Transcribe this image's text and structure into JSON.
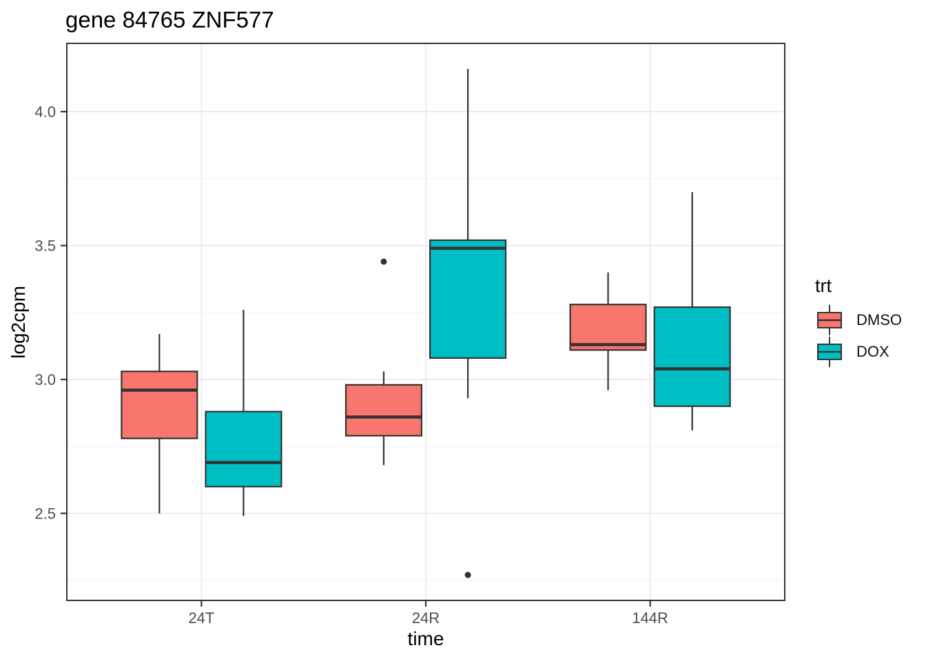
{
  "title": "gene 84765 ZNF577",
  "axes": {
    "x": {
      "label": "time",
      "tick_labels": [
        "24T",
        "24R",
        "144R"
      ]
    },
    "y": {
      "label": "log2cpm",
      "tick_labels": [
        "2.5",
        "3.0",
        "3.5",
        "4.0"
      ]
    }
  },
  "legend": {
    "title": "trt",
    "items": [
      {
        "label": "DMSO",
        "color": "#F8766D"
      },
      {
        "label": "DOX",
        "color": "#00BFC4"
      }
    ]
  },
  "chart_data": {
    "type": "boxplot",
    "title": "gene 84765 ZNF577",
    "xlabel": "time",
    "ylabel": "log2cpm",
    "categories": [
      "24T",
      "24R",
      "144R"
    ],
    "series": [
      {
        "name": "DMSO",
        "color": "#F8766D",
        "boxes": [
          {
            "category": "24T",
            "whisker_low": 2.5,
            "q1": 2.78,
            "median": 2.96,
            "q3": 3.03,
            "whisker_high": 3.17,
            "outliers": []
          },
          {
            "category": "24R",
            "whisker_low": 2.68,
            "q1": 2.79,
            "median": 2.86,
            "q3": 2.98,
            "whisker_high": 3.03,
            "outliers": [
              3.44
            ]
          },
          {
            "category": "144R",
            "whisker_low": 2.96,
            "q1": 3.11,
            "median": 3.13,
            "q3": 3.28,
            "whisker_high": 3.4,
            "outliers": []
          }
        ]
      },
      {
        "name": "DOX",
        "color": "#00BFC4",
        "boxes": [
          {
            "category": "24T",
            "whisker_low": 2.49,
            "q1": 2.6,
            "median": 2.69,
            "q3": 2.88,
            "whisker_high": 3.26,
            "outliers": []
          },
          {
            "category": "24R",
            "whisker_low": 2.93,
            "q1": 3.08,
            "median": 3.49,
            "q3": 3.52,
            "whisker_high": 4.16,
            "outliers": [
              2.27
            ]
          },
          {
            "category": "144R",
            "whisker_low": 2.81,
            "q1": 2.9,
            "median": 3.04,
            "q3": 3.27,
            "whisker_high": 3.7,
            "outliers": []
          }
        ]
      }
    ],
    "y_ticks": [
      2.5,
      3.0,
      3.5,
      4.0
    ],
    "y_minor_ticks": [
      2.25,
      2.75,
      3.25,
      3.75
    ],
    "ylim": [
      2.175,
      4.255
    ],
    "x_range": [
      0.4,
      3.6
    ],
    "dodge_offset_units": 0.1875,
    "box_width_units": 0.3375,
    "grid": "major-horizontal, minor-horizontal, major-vertical",
    "legend_position": "right",
    "colors": {
      "box_line": "#333333",
      "outlier": "#333333",
      "panel_border": "#333333",
      "grid_major": "#E8E8E8",
      "grid_minor": "#F2F2F2",
      "axis_text": "#4D4D4D",
      "panel_background": "#FFFFFF"
    }
  }
}
